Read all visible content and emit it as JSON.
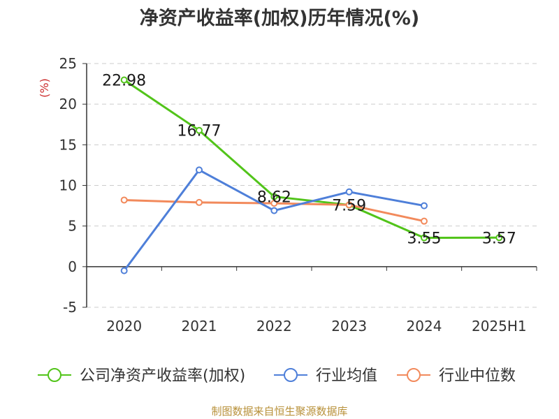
{
  "colors": {
    "company": "#52c41a",
    "industry_avg": "#4e7fd9",
    "industry_median": "#f28a5c",
    "unit": "#cc2b2b",
    "source": "#b8913a"
  },
  "source_note": "制图数据来自恒生聚源数据库",
  "chart_data": {
    "type": "line",
    "title": "净资产收益率(加权)历年情况(%)",
    "ylabel": "(%)",
    "xlabel": "",
    "categories": [
      "2020",
      "2021",
      "2022",
      "2023",
      "2024",
      "2025H1"
    ],
    "ylim": [
      -5,
      25
    ],
    "yticks": [
      25,
      20,
      15,
      10,
      5,
      0,
      -5
    ],
    "grid": true,
    "legend_position": "bottom",
    "series": [
      {
        "name": "公司净资产收益率(加权)",
        "color_key": "company",
        "values": [
          22.98,
          16.77,
          8.62,
          7.59,
          3.55,
          3.57
        ],
        "labels": [
          "22.98",
          "16.77",
          "8.62",
          "7.59",
          "3.55",
          "3.57"
        ]
      },
      {
        "name": "行业均值",
        "color_key": "industry_avg",
        "values": [
          -0.5,
          11.9,
          6.9,
          9.2,
          7.5,
          null
        ]
      },
      {
        "name": "行业中位数",
        "color_key": "industry_median",
        "values": [
          8.2,
          7.9,
          7.8,
          7.6,
          5.6,
          null
        ]
      }
    ]
  }
}
